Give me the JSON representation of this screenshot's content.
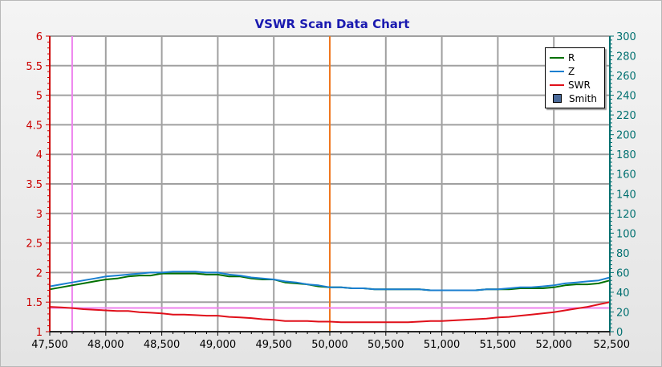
{
  "chart_data": {
    "type": "line",
    "title": "VSWR Scan Data Chart",
    "xlabel": "",
    "ylabel_left": "",
    "ylabel_right": "",
    "x_range": [
      47500,
      52500
    ],
    "x_ticks": [
      47500,
      48000,
      48500,
      49000,
      49500,
      50000,
      50500,
      51000,
      51500,
      52000,
      52500
    ],
    "x_tick_labels": [
      "47,500",
      "48,000",
      "48,500",
      "49,000",
      "49,500",
      "50,000",
      "50,500",
      "51,000",
      "51,500",
      "52,000",
      "52,500"
    ],
    "y_left_range": [
      1,
      6
    ],
    "y_left_ticks": [
      1,
      1.5,
      2,
      2.5,
      3,
      3.5,
      4,
      4.5,
      5,
      5.5,
      6
    ],
    "y_left_tick_labels": [
      "1",
      "1.5",
      "2",
      "2.5",
      "3",
      "3.5",
      "4",
      "4.5",
      "5",
      "5.5",
      "6"
    ],
    "y_right_range": [
      0,
      300
    ],
    "y_right_ticks": [
      0,
      20,
      40,
      60,
      80,
      100,
      120,
      140,
      160,
      180,
      200,
      220,
      240,
      260,
      280,
      300
    ],
    "y_right_tick_labels": [
      "0",
      "20",
      "40",
      "60",
      "80",
      "100",
      "120",
      "140",
      "160",
      "180",
      "200",
      "220",
      "240",
      "260",
      "280",
      "300"
    ],
    "grid": true,
    "legend_position": "top-right",
    "x": [
      47500,
      47600,
      47700,
      47800,
      47900,
      48000,
      48100,
      48200,
      48300,
      48400,
      48500,
      48600,
      48700,
      48800,
      48900,
      49000,
      49100,
      49200,
      49300,
      49400,
      49500,
      49600,
      49700,
      49800,
      49900,
      50000,
      50100,
      50200,
      50300,
      50400,
      50500,
      50600,
      50700,
      50800,
      50900,
      51000,
      51100,
      51200,
      51300,
      51400,
      51500,
      51600,
      51700,
      51800,
      51900,
      52000,
      52100,
      52200,
      52300,
      52400,
      52500
    ],
    "series": [
      {
        "name": "R",
        "axis": "right",
        "color": "#007000",
        "values": [
          43,
          45,
          47,
          49,
          51,
          53,
          54,
          56,
          57,
          57,
          59,
          59,
          59,
          59,
          58,
          58,
          56,
          56,
          54,
          53,
          53,
          50,
          49,
          48,
          46,
          45,
          45,
          44,
          44,
          43,
          43,
          43,
          43,
          43,
          42,
          42,
          42,
          42,
          42,
          43,
          43,
          43,
          44,
          44,
          44,
          45,
          47,
          48,
          48,
          49,
          52
        ]
      },
      {
        "name": "Z",
        "axis": "right",
        "color": "#1a7fd0",
        "values": [
          46,
          48,
          50,
          52,
          54,
          56,
          57,
          58,
          59,
          60,
          60,
          61,
          61,
          61,
          60,
          60,
          58,
          57,
          55,
          54,
          53,
          51,
          50,
          48,
          47,
          45,
          45,
          44,
          44,
          43,
          43,
          43,
          43,
          43,
          42,
          42,
          42,
          42,
          42,
          43,
          43,
          44,
          45,
          45,
          46,
          47,
          49,
          50,
          51,
          52,
          55
        ]
      },
      {
        "name": "SWR",
        "axis": "left",
        "color": "#e0101a",
        "values": [
          1.42,
          1.41,
          1.4,
          1.38,
          1.37,
          1.36,
          1.35,
          1.35,
          1.33,
          1.32,
          1.31,
          1.29,
          1.29,
          1.28,
          1.27,
          1.27,
          1.25,
          1.24,
          1.23,
          1.21,
          1.2,
          1.18,
          1.18,
          1.18,
          1.17,
          1.17,
          1.16,
          1.16,
          1.16,
          1.16,
          1.16,
          1.16,
          1.16,
          1.17,
          1.18,
          1.18,
          1.19,
          1.2,
          1.21,
          1.22,
          1.24,
          1.25,
          1.27,
          1.29,
          1.31,
          1.33,
          1.36,
          1.39,
          1.42,
          1.46,
          1.5
        ]
      }
    ],
    "reference_lines": [
      {
        "orientation": "vertical",
        "x": 47700,
        "color": "#ee82ee"
      },
      {
        "orientation": "vertical",
        "x": 50000,
        "color": "#f07820"
      },
      {
        "orientation": "horizontal",
        "axis": "left",
        "y": 1.4,
        "color": "#ee82ee"
      }
    ]
  },
  "legend": {
    "items": [
      {
        "label": "R",
        "color": "#007000",
        "kind": "line"
      },
      {
        "label": "Z",
        "color": "#1a7fd0",
        "kind": "line"
      },
      {
        "label": "SWR",
        "color": "#e0101a",
        "kind": "line"
      },
      {
        "label": "Smith",
        "color": "#4a6a9a",
        "kind": "box"
      }
    ]
  },
  "colors": {
    "title": "#1a1ab0",
    "left_axis": "#cc0000",
    "right_axis": "#007070",
    "x_axis": "#000000",
    "grid": "#a0a0a0"
  }
}
